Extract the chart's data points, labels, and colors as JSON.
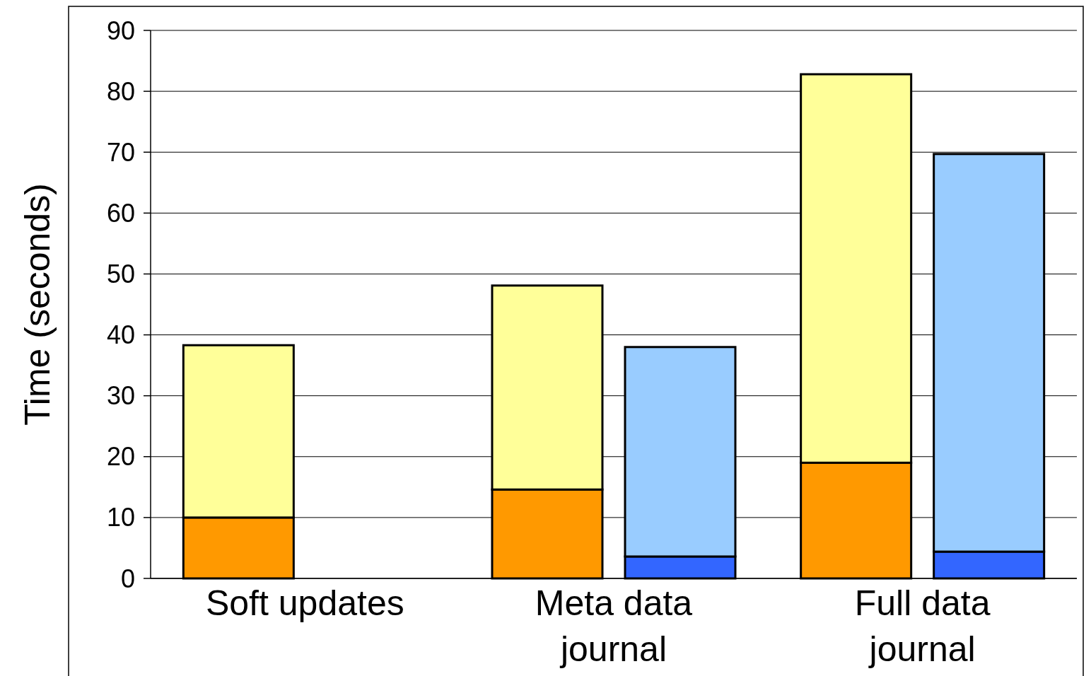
{
  "chart_data": {
    "type": "bar",
    "ylabel": "Time (seconds)",
    "categories": [
      "Soft updates",
      "Meta data journal",
      "Full data journal"
    ],
    "series": [
      {
        "color": "#ff9900",
        "values": [
          10,
          14.6,
          19
        ],
        "base": [
          0,
          0,
          0
        ]
      },
      {
        "color": "#ffff99",
        "values": [
          28.3,
          33.5,
          63.8
        ],
        "base": [
          10,
          14.6,
          19
        ]
      },
      {
        "color": "#3366ff",
        "values": [
          null,
          3.6,
          4.4
        ],
        "base": [
          null,
          0,
          0
        ]
      },
      {
        "color": "#99ccff",
        "values": [
          null,
          34.4,
          65.3
        ],
        "base": [
          null,
          3.6,
          4.4
        ]
      }
    ],
    "ylim": [
      0,
      90
    ],
    "yticks": [
      0,
      10,
      20,
      30,
      40,
      50,
      60,
      70,
      80,
      90
    ],
    "grid": "y"
  }
}
